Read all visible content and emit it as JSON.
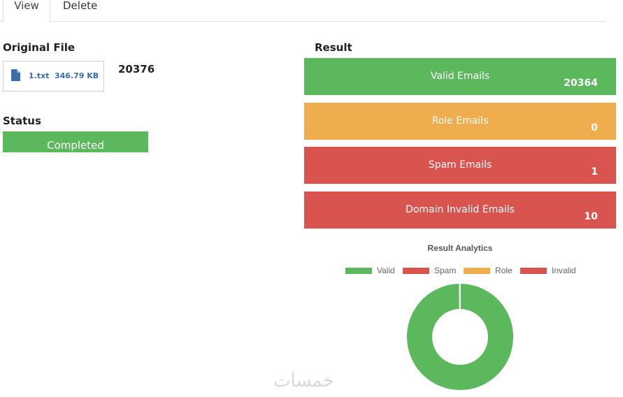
{
  "tabs": [
    {
      "label": "View",
      "active": true
    },
    {
      "label": "Delete",
      "active": false
    }
  ],
  "original_file": {
    "title": "Original File",
    "file_name": "1.txt",
    "file_size": "346.79 KB",
    "count": "20376"
  },
  "status": {
    "title": "Status",
    "value": "Completed",
    "color": "#5cb85c"
  },
  "result": {
    "title": "Result",
    "cards": [
      {
        "label": "Valid Emails",
        "value": "20364",
        "color": "#5cb85c"
      },
      {
        "label": "Role Emails",
        "value": "0",
        "color": "#f0ad4e"
      },
      {
        "label": "Spam Emails",
        "value": "1",
        "color": "#d9534f"
      },
      {
        "label": "Domain Invalid Emails",
        "value": "10",
        "color": "#d9534f"
      }
    ]
  },
  "chart_data": {
    "type": "pie",
    "title": "Result Analytics",
    "categories": [
      "Valid",
      "Spam",
      "Role",
      "Invalid"
    ],
    "values": [
      20364,
      1,
      0,
      10
    ],
    "colors": [
      "#5cb85c",
      "#d9534f",
      "#f0ad4e",
      "#d9534f"
    ],
    "legend_position": "top",
    "donut": true
  },
  "watermark": "خمسات"
}
